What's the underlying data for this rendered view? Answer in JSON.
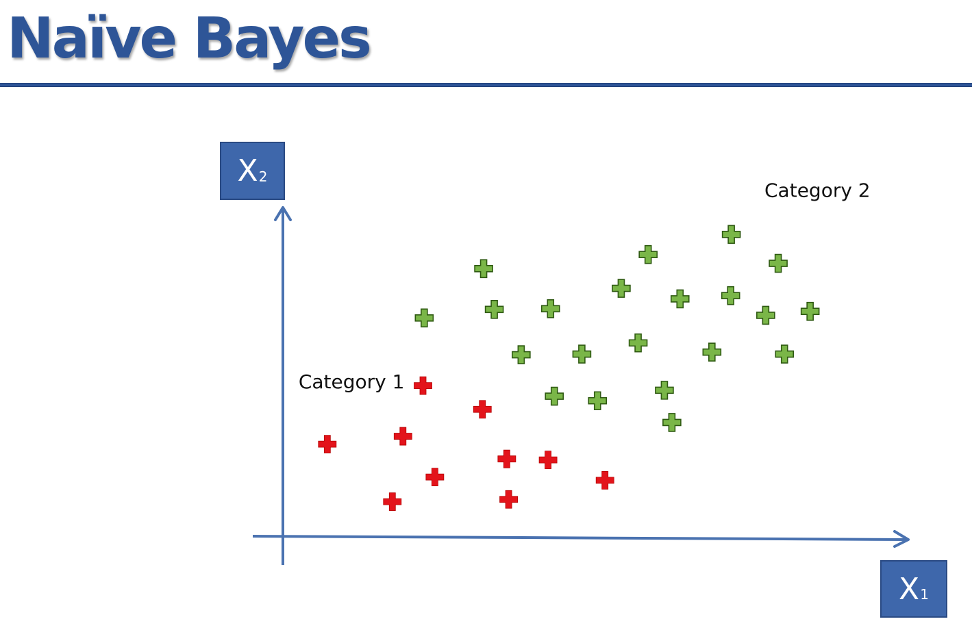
{
  "title": "Naïve Bayes",
  "axes": {
    "x_label": "X",
    "x_sub": "1",
    "y_label": "X",
    "y_sub": "2"
  },
  "colors": {
    "brand_blue": "#2e5597",
    "axis_line": "#4a72b0",
    "category_1": "#e3141b",
    "category_2": "#7ab648",
    "category_2_outline": "#2f5a12"
  },
  "chart_data": {
    "type": "scatter",
    "xlim": [
      0,
      100
    ],
    "ylim": [
      0,
      100
    ],
    "grid": false,
    "series": [
      {
        "name": "Category 1",
        "color": "#e3141b",
        "points": [
          [
            7.1,
            28.0
          ],
          [
            19.2,
            30.4
          ],
          [
            17.5,
            10.5
          ],
          [
            24.3,
            18.0
          ],
          [
            22.4,
            45.8
          ],
          [
            31.9,
            38.6
          ],
          [
            35.8,
            23.5
          ],
          [
            36.1,
            11.2
          ],
          [
            42.4,
            23.2
          ],
          [
            51.5,
            17.0
          ]
        ]
      },
      {
        "name": "Category 2",
        "color": "#7ab648",
        "points": [
          [
            22.6,
            66.4
          ],
          [
            32.1,
            81.4
          ],
          [
            33.8,
            69.0
          ],
          [
            38.1,
            55.2
          ],
          [
            42.8,
            69.2
          ],
          [
            43.4,
            42.6
          ],
          [
            47.8,
            55.4
          ],
          [
            50.3,
            41.2
          ],
          [
            54.1,
            75.4
          ],
          [
            56.8,
            58.8
          ],
          [
            58.4,
            85.7
          ],
          [
            61.0,
            44.4
          ],
          [
            62.2,
            34.6
          ],
          [
            63.5,
            72.2
          ],
          [
            68.6,
            56.0
          ],
          [
            71.6,
            73.2
          ],
          [
            71.7,
            91.8
          ],
          [
            77.2,
            67.2
          ],
          [
            79.2,
            83.0
          ],
          [
            80.2,
            55.4
          ],
          [
            84.3,
            68.4
          ]
        ]
      }
    ],
    "annotations": [
      {
        "text": "Category 1",
        "x": 2.5,
        "y": 45.0
      },
      {
        "text": "Category 2",
        "x": 77.0,
        "y": 103.2
      }
    ]
  }
}
